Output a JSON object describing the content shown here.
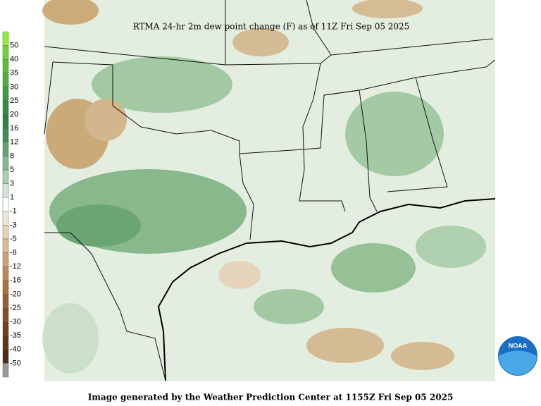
{
  "title": "RTMA 24-hr 2m dew point change (F) as of 11Z Fri Sep 05 2025",
  "footer": "Image generated by the Weather Prediction Center at 1155Z Fri Sep 05 2025",
  "logo": "NOAA",
  "legend": {
    "labels": [
      50,
      40,
      35,
      30,
      25,
      20,
      16,
      12,
      8,
      5,
      3,
      1,
      -1,
      -3,
      -5,
      -8,
      -12,
      -16,
      -20,
      -25,
      -30,
      -35,
      -40,
      -50
    ],
    "colors": [
      "#8cf03c",
      "#6fd236",
      "#5cbf35",
      "#4cae3a",
      "#3f9c3e",
      "#358c42",
      "#2f8048",
      "#3d8e57",
      "#5fa474",
      "#82b993",
      "#a6ceb1",
      "#d2e6d8",
      "#ffffff",
      "#f0e6d8",
      "#e6d2b8",
      "#d9bb94",
      "#cba272",
      "#bb8a52",
      "#a9733c",
      "#966030",
      "#825026",
      "#6f421e",
      "#5d3718",
      "#4d2e14",
      "#9a9a9a"
    ]
  }
}
